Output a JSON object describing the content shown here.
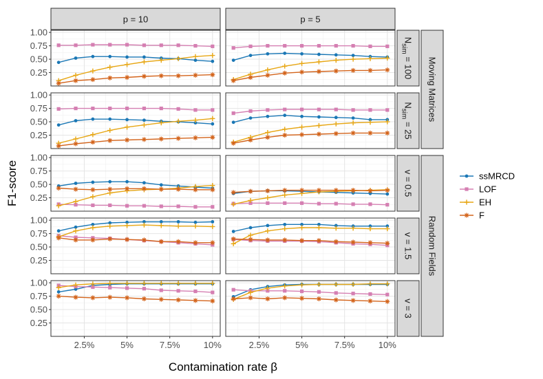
{
  "chart_data": {
    "type": "line",
    "ylabel": "F1-score",
    "xlabel": "Contamination rate β",
    "x": [
      1,
      2,
      3,
      4,
      5,
      6,
      7,
      8,
      9,
      10
    ],
    "xlim": [
      0.55,
      10.45
    ],
    "ylim": [
      0,
      1.04
    ],
    "xticks": [
      2.5,
      5,
      7.5,
      10
    ],
    "xtick_labels": [
      "2.5%",
      "5%",
      "7.5%",
      "10%"
    ],
    "yticks": [
      0.25,
      0.5,
      0.75,
      1.0
    ],
    "ytick_labels": [
      "0.25",
      "0.50",
      "0.75",
      "1.00"
    ],
    "col_strips": [
      "p = 10",
      "p = 5"
    ],
    "row_strips": [
      {
        "pre": "N",
        "sub": "sim",
        "post": " = 100"
      },
      {
        "pre": "N",
        "sub": "sim",
        "post": " = 25"
      },
      {
        "pre": "v = 0.5",
        "sub": "",
        "post": ""
      },
      {
        "pre": "v = 1.5",
        "sub": "",
        "post": ""
      },
      {
        "pre": "v = 3",
        "sub": "",
        "post": ""
      }
    ],
    "group_strips": [
      "Moving Matrices",
      "Random Fields"
    ],
    "series_meta": [
      {
        "name": "ssMRCD",
        "color": "#1a77b5",
        "marker": "circle"
      },
      {
        "name": "LOF",
        "color": "#d57fb2",
        "marker": "square"
      },
      {
        "name": "EH",
        "color": "#e7a613",
        "marker": "plus"
      },
      {
        "name": "F",
        "color": "#d3631a",
        "marker": "asterisk"
      }
    ],
    "panels": [
      {
        "row": 0,
        "col": 0,
        "series": [
          [
            0.44,
            0.52,
            0.55,
            0.55,
            0.54,
            0.54,
            0.52,
            0.51,
            0.48,
            0.46
          ],
          [
            0.76,
            0.76,
            0.77,
            0.77,
            0.77,
            0.76,
            0.76,
            0.76,
            0.75,
            0.74
          ],
          [
            0.1,
            0.2,
            0.28,
            0.35,
            0.4,
            0.45,
            0.48,
            0.51,
            0.55,
            0.57
          ],
          [
            0.05,
            0.1,
            0.12,
            0.15,
            0.16,
            0.18,
            0.19,
            0.19,
            0.2,
            0.21
          ]
        ]
      },
      {
        "row": 0,
        "col": 1,
        "series": [
          [
            0.48,
            0.57,
            0.6,
            0.61,
            0.6,
            0.59,
            0.58,
            0.57,
            0.55,
            0.54
          ],
          [
            0.71,
            0.74,
            0.75,
            0.75,
            0.75,
            0.75,
            0.75,
            0.75,
            0.74,
            0.74
          ],
          [
            0.12,
            0.22,
            0.3,
            0.37,
            0.42,
            0.45,
            0.48,
            0.5,
            0.51,
            0.52
          ],
          [
            0.1,
            0.16,
            0.2,
            0.24,
            0.26,
            0.27,
            0.28,
            0.29,
            0.29,
            0.3
          ]
        ]
      },
      {
        "row": 1,
        "col": 0,
        "series": [
          [
            0.44,
            0.52,
            0.55,
            0.55,
            0.54,
            0.53,
            0.51,
            0.5,
            0.48,
            0.46
          ],
          [
            0.74,
            0.75,
            0.75,
            0.75,
            0.75,
            0.75,
            0.75,
            0.74,
            0.72,
            0.72
          ],
          [
            0.1,
            0.18,
            0.26,
            0.34,
            0.4,
            0.44,
            0.48,
            0.51,
            0.53,
            0.56
          ],
          [
            0.05,
            0.09,
            0.12,
            0.15,
            0.16,
            0.17,
            0.18,
            0.19,
            0.2,
            0.21
          ]
        ]
      },
      {
        "row": 1,
        "col": 1,
        "series": [
          [
            0.49,
            0.57,
            0.6,
            0.62,
            0.6,
            0.59,
            0.58,
            0.57,
            0.54,
            0.54
          ],
          [
            0.66,
            0.7,
            0.72,
            0.73,
            0.73,
            0.73,
            0.73,
            0.72,
            0.72,
            0.72
          ],
          [
            0.12,
            0.21,
            0.3,
            0.36,
            0.4,
            0.43,
            0.46,
            0.48,
            0.49,
            0.5
          ],
          [
            0.1,
            0.16,
            0.21,
            0.25,
            0.26,
            0.27,
            0.28,
            0.29,
            0.29,
            0.29
          ]
        ]
      },
      {
        "row": 2,
        "col": 0,
        "series": [
          [
            0.47,
            0.52,
            0.54,
            0.55,
            0.55,
            0.53,
            0.49,
            0.47,
            0.45,
            0.43
          ],
          [
            0.13,
            0.12,
            0.11,
            0.11,
            0.1,
            0.1,
            0.09,
            0.09,
            0.08,
            0.08
          ],
          [
            0.1,
            0.18,
            0.27,
            0.34,
            0.38,
            0.4,
            0.41,
            0.43,
            0.46,
            0.48
          ],
          [
            0.43,
            0.41,
            0.4,
            0.41,
            0.42,
            0.42,
            0.41,
            0.41,
            0.4,
            0.4
          ]
        ]
      },
      {
        "row": 2,
        "col": 1,
        "series": [
          [
            0.33,
            0.37,
            0.38,
            0.38,
            0.37,
            0.36,
            0.35,
            0.34,
            0.33,
            0.32
          ],
          [
            0.14,
            0.15,
            0.15,
            0.15,
            0.15,
            0.14,
            0.14,
            0.13,
            0.13,
            0.12
          ],
          [
            0.13,
            0.2,
            0.25,
            0.3,
            0.33,
            0.36,
            0.37,
            0.38,
            0.39,
            0.4
          ],
          [
            0.35,
            0.37,
            0.38,
            0.39,
            0.39,
            0.39,
            0.39,
            0.39,
            0.38,
            0.39
          ]
        ]
      },
      {
        "row": 3,
        "col": 0,
        "series": [
          [
            0.8,
            0.87,
            0.92,
            0.95,
            0.96,
            0.97,
            0.97,
            0.97,
            0.96,
            0.97
          ],
          [
            0.71,
            0.68,
            0.67,
            0.66,
            0.64,
            0.62,
            0.6,
            0.58,
            0.56,
            0.54
          ],
          [
            0.69,
            0.8,
            0.86,
            0.89,
            0.9,
            0.91,
            0.9,
            0.89,
            0.89,
            0.88
          ],
          [
            0.67,
            0.63,
            0.63,
            0.65,
            0.64,
            0.63,
            0.6,
            0.6,
            0.58,
            0.58
          ]
        ]
      },
      {
        "row": 3,
        "col": 1,
        "series": [
          [
            0.79,
            0.86,
            0.9,
            0.92,
            0.92,
            0.92,
            0.9,
            0.89,
            0.89,
            0.89
          ],
          [
            0.64,
            0.62,
            0.61,
            0.61,
            0.61,
            0.6,
            0.58,
            0.56,
            0.55,
            0.53
          ],
          [
            0.56,
            0.72,
            0.8,
            0.84,
            0.86,
            0.86,
            0.85,
            0.85,
            0.84,
            0.84
          ],
          [
            0.65,
            0.64,
            0.63,
            0.63,
            0.62,
            0.62,
            0.6,
            0.59,
            0.58,
            0.57
          ]
        ]
      },
      {
        "row": 4,
        "col": 0,
        "series": [
          [
            0.83,
            0.88,
            0.95,
            0.97,
            0.98,
            0.98,
            0.98,
            0.98,
            0.98,
            0.98
          ],
          [
            0.95,
            0.93,
            0.92,
            0.91,
            0.9,
            0.89,
            0.86,
            0.85,
            0.84,
            0.82
          ],
          [
            0.91,
            0.96,
            0.98,
            0.99,
            0.99,
            0.99,
            0.99,
            0.99,
            0.99,
            0.99
          ],
          [
            0.75,
            0.73,
            0.72,
            0.73,
            0.72,
            0.7,
            0.69,
            0.68,
            0.67,
            0.66
          ]
        ]
      },
      {
        "row": 4,
        "col": 1,
        "series": [
          [
            0.74,
            0.87,
            0.93,
            0.96,
            0.97,
            0.97,
            0.97,
            0.97,
            0.97,
            0.97
          ],
          [
            0.87,
            0.85,
            0.85,
            0.85,
            0.84,
            0.83,
            0.81,
            0.8,
            0.79,
            0.78
          ],
          [
            0.69,
            0.82,
            0.9,
            0.94,
            0.96,
            0.97,
            0.97,
            0.97,
            0.98,
            0.98
          ],
          [
            0.7,
            0.72,
            0.7,
            0.72,
            0.71,
            0.7,
            0.68,
            0.67,
            0.66,
            0.65
          ]
        ]
      }
    ]
  },
  "legend": {
    "items": [
      "ssMRCD",
      "LOF",
      "EH",
      "F"
    ]
  }
}
